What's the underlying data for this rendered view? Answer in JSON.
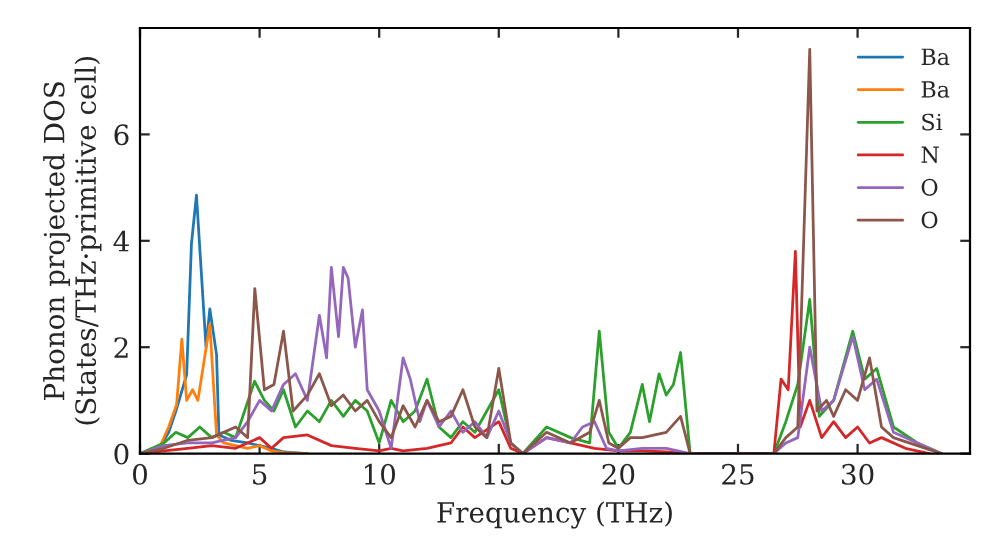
{
  "chart_data": {
    "type": "line",
    "xlabel": "Frequency (THz)",
    "ylabel": "Phonon projected DOS\n(States/THz·primitive cell)",
    "xlim": [
      0,
      34.7
    ],
    "ylim": [
      0,
      8
    ],
    "xticks": [
      0,
      5,
      10,
      15,
      20,
      25,
      30
    ],
    "yticks": [
      0,
      2,
      4,
      6
    ],
    "grid": false,
    "legend": "top right",
    "series": [
      {
        "name": "Ba",
        "color": "#1f77b4",
        "x": [
          0,
          0.8,
          1.2,
          1.5,
          1.95,
          2.15,
          2.36,
          2.55,
          2.76,
          2.92,
          3.2,
          3.3,
          3.8,
          4.5,
          5.0,
          5.5,
          6.0,
          7.0
        ],
        "values": [
          0,
          0.1,
          0.4,
          0.8,
          1.48,
          3.94,
          4.86,
          3.5,
          2.0,
          2.72,
          1.86,
          0.35,
          0.25,
          0.2,
          0.15,
          0.1,
          0.03,
          0
        ]
      },
      {
        "name": "Ba",
        "color": "#ff7f0e",
        "x": [
          0,
          0.8,
          1.2,
          1.53,
          1.75,
          1.95,
          2.2,
          2.42,
          2.92,
          3.2,
          3.5,
          4.5,
          5.0,
          5.5,
          6.0,
          7.0
        ],
        "values": [
          0,
          0.1,
          0.5,
          0.92,
          2.15,
          1.0,
          1.2,
          1.0,
          2.43,
          0.35,
          0.2,
          0.1,
          0.15,
          0.05,
          0.02,
          0
        ]
      },
      {
        "name": "Si",
        "color": "#2ca02c",
        "x": [
          0,
          1.0,
          1.5,
          2.0,
          2.5,
          3.0,
          3.5,
          4.0,
          4.79,
          5.2,
          5.6,
          6.0,
          6.5,
          7.0,
          7.5,
          8.0,
          8.5,
          9.0,
          9.5,
          10.0,
          10.5,
          11.0,
          11.5,
          12.0,
          12.5,
          13.0,
          13.5,
          14.0,
          14.5,
          15.0,
          15.5,
          16.0,
          17.0,
          18.0,
          18.8,
          19.2,
          19.6,
          20.0,
          20.5,
          21.0,
          21.3,
          21.7,
          22.0,
          22.3,
          22.6,
          23.0,
          26.5,
          27.0,
          27.5,
          28.0,
          28.4,
          29.0,
          29.8,
          30.3,
          30.8,
          31.5,
          32.5,
          33.5
        ],
        "values": [
          0,
          0.2,
          0.4,
          0.3,
          0.5,
          0.3,
          0.4,
          0.3,
          1.36,
          1.0,
          0.8,
          1.2,
          0.5,
          0.8,
          0.6,
          1.0,
          0.7,
          1.0,
          0.8,
          0.2,
          1.0,
          0.6,
          0.8,
          1.4,
          0.5,
          0.3,
          0.6,
          0.4,
          0.8,
          1.2,
          0.2,
          0,
          0.5,
          0.3,
          0.2,
          2.3,
          0.4,
          0.1,
          0.4,
          1.3,
          0.6,
          1.5,
          1.1,
          1.3,
          1.9,
          0,
          0,
          0.6,
          1.3,
          2.9,
          0.7,
          1.0,
          2.3,
          1.4,
          1.6,
          0.5,
          0.2,
          0
        ]
      },
      {
        "name": "N",
        "color": "#d62728",
        "x": [
          0,
          1.0,
          2.0,
          3.0,
          4.0,
          5.0,
          5.5,
          6.0,
          7.0,
          8.0,
          9.0,
          10.0,
          10.5,
          11.0,
          12.0,
          13.0,
          13.5,
          14.0,
          15.0,
          15.5,
          16.0,
          17.0,
          18.0,
          19.0,
          20.0,
          21.0,
          22.0,
          23.0,
          26.5,
          26.8,
          27.1,
          27.4,
          27.6,
          28.0,
          28.5,
          29.0,
          29.5,
          30.0,
          30.5,
          31.0,
          32.0,
          33.0
        ],
        "values": [
          0,
          0.05,
          0.1,
          0.15,
          0.1,
          0.3,
          0.1,
          0.3,
          0.35,
          0.15,
          0.1,
          0.05,
          0.1,
          0.05,
          0.1,
          0.2,
          0.5,
          0.3,
          0.6,
          0.1,
          0,
          0.3,
          0.2,
          0.1,
          0.05,
          0.05,
          0.03,
          0,
          0,
          1.4,
          1.2,
          3.8,
          0.5,
          1.0,
          0.3,
          0.6,
          0.3,
          0.5,
          0.2,
          0.3,
          0.1,
          0
        ]
      },
      {
        "name": "O",
        "color": "#9467bd",
        "x": [
          0,
          1.0,
          2.0,
          3.0,
          4.0,
          4.5,
          5.0,
          5.5,
          6.0,
          6.5,
          7.0,
          7.5,
          7.8,
          8.0,
          8.3,
          8.5,
          8.7,
          9.0,
          9.3,
          9.5,
          10.0,
          10.5,
          11.0,
          11.3,
          11.7,
          12.0,
          12.5,
          13.0,
          13.5,
          14.0,
          14.5,
          15.0,
          15.5,
          16.0,
          17.0,
          18.0,
          18.5,
          19.0,
          19.5,
          20.0,
          21.0,
          22.0,
          23.0,
          26.5,
          27.0,
          27.5,
          28.0,
          28.5,
          29.0,
          29.8,
          30.3,
          30.8,
          31.5,
          32.5,
          33.5
        ],
        "values": [
          0,
          0.15,
          0.2,
          0.2,
          0.3,
          0.6,
          1.0,
          0.8,
          1.3,
          1.5,
          1.0,
          2.6,
          1.8,
          3.5,
          2.2,
          3.5,
          3.3,
          2.0,
          2.7,
          1.2,
          0.8,
          0.1,
          1.8,
          1.4,
          0.6,
          1.0,
          0.5,
          0.8,
          0.4,
          0.6,
          0.3,
          0.8,
          0.2,
          0,
          0.3,
          0.2,
          0.5,
          0.6,
          0.1,
          0.05,
          0.1,
          0.1,
          0,
          0,
          0.2,
          0.3,
          2.0,
          0.8,
          1.0,
          2.2,
          1.2,
          1.4,
          0.4,
          0.2,
          0
        ]
      },
      {
        "name": "O",
        "color": "#8c564b",
        "x": [
          0,
          1.0,
          2.0,
          3.0,
          4.0,
          4.5,
          4.8,
          5.2,
          5.6,
          6.0,
          6.4,
          7.0,
          7.5,
          8.0,
          8.5,
          9.0,
          9.5,
          10.0,
          10.5,
          11.0,
          11.5,
          12.0,
          12.5,
          13.0,
          13.5,
          14.0,
          14.5,
          15.0,
          15.5,
          16.0,
          17.0,
          18.0,
          18.8,
          19.2,
          19.6,
          20.0,
          20.5,
          21.0,
          22.0,
          22.6,
          23.0,
          26.5,
          27.0,
          27.5,
          28.0,
          28.3,
          28.7,
          29.0,
          29.5,
          30.0,
          30.5,
          31.0,
          31.5,
          32.5,
          33.5
        ],
        "values": [
          0,
          0.1,
          0.25,
          0.3,
          0.5,
          0.3,
          3.1,
          1.2,
          1.3,
          2.3,
          0.8,
          1.1,
          1.5,
          0.9,
          1.1,
          0.8,
          1.0,
          0.6,
          0.3,
          0.9,
          0.5,
          1.0,
          0.6,
          0.7,
          1.2,
          0.5,
          0.3,
          1.6,
          0.2,
          0,
          0.4,
          0.2,
          0.4,
          1.0,
          0.2,
          0.1,
          0.3,
          0.3,
          0.4,
          0.7,
          0,
          0,
          0.3,
          0.5,
          7.6,
          0.8,
          1.0,
          0.7,
          1.2,
          1.0,
          1.8,
          0.5,
          0.3,
          0.15,
          0
        ]
      }
    ]
  }
}
